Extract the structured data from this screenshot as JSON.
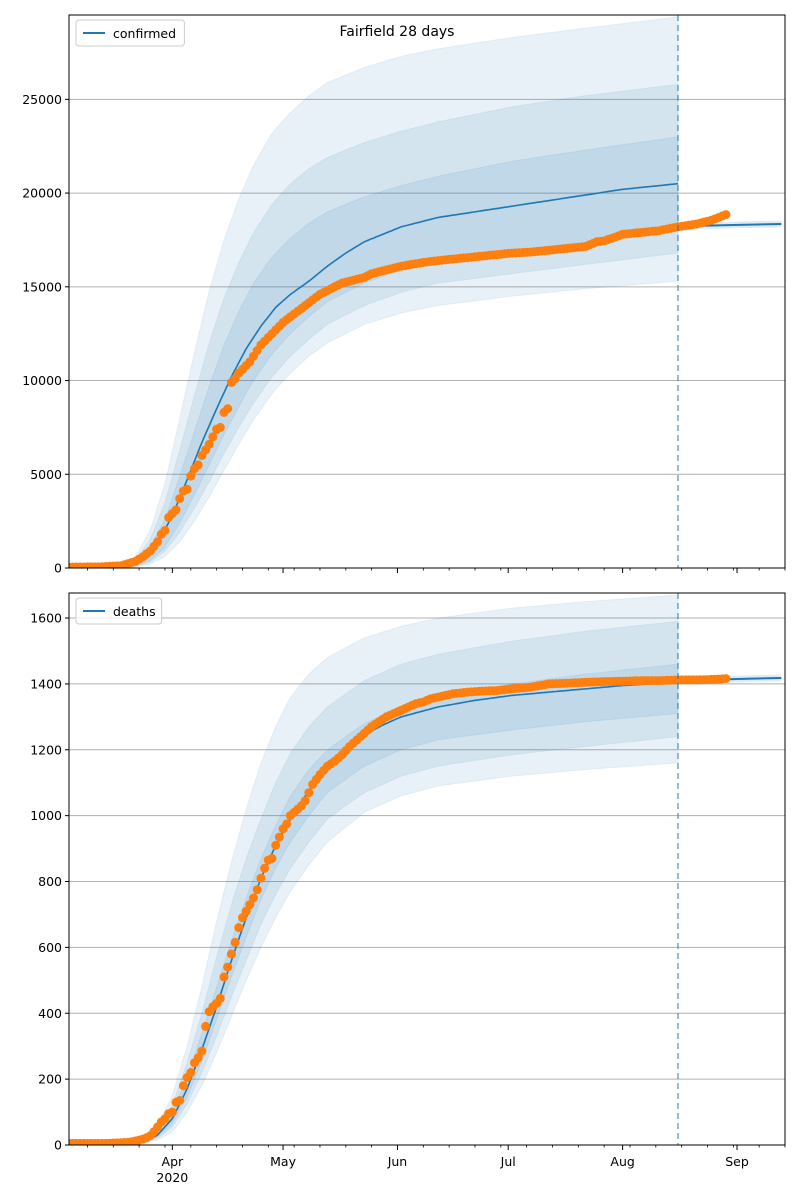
{
  "title": "Fairfield 28 days",
  "colors": {
    "model": "#1f77b4",
    "observed": "#ff7f0e",
    "band": "#1f77b4",
    "grid": "#b0b0b0",
    "axis": "#000000"
  },
  "chart_data": [
    {
      "type": "line",
      "title": "Fairfield 28 days",
      "legend": [
        "confirmed"
      ],
      "legend_position": "top-left",
      "grid": "y",
      "x_axis": {
        "type": "date",
        "start": "2020-03-04",
        "end": "2020-09-14",
        "tick_labels": [
          "Apr",
          "May",
          "Jun",
          "Jul",
          "Aug",
          "Sep"
        ],
        "tick_dates": [
          "2020-04-01",
          "2020-05-01",
          "2020-06-01",
          "2020-07-01",
          "2020-08-01",
          "2020-09-01"
        ],
        "year_label": "2020"
      },
      "ylim": [
        0,
        29500
      ],
      "yticks": [
        0,
        5000,
        10000,
        15000,
        20000,
        25000
      ],
      "forecast_start": "2020-08-16",
      "model_median": {
        "days": [
          0,
          10,
          16,
          20,
          24,
          28,
          32,
          36,
          40,
          44,
          48,
          52,
          56,
          60,
          65,
          70,
          75,
          80,
          85,
          90,
          100,
          110,
          120,
          130,
          140,
          150,
          160,
          165
        ],
        "values": [
          0,
          20,
          150,
          500,
          1300,
          2800,
          4700,
          6700,
          8500,
          10200,
          11700,
          12900,
          13900,
          14600,
          15300,
          16100,
          16800,
          17400,
          17800,
          18200,
          18700,
          19000,
          19300,
          19600,
          19900,
          20200,
          20400,
          20500
        ]
      },
      "bands": [
        {
          "name": "outer",
          "days": [
            0,
            12,
            18,
            22,
            26,
            30,
            34,
            38,
            42,
            46,
            50,
            55,
            60,
            65,
            70,
            80,
            90,
            100,
            120,
            140,
            165
          ],
          "lower": [
            0,
            0,
            50,
            200,
            600,
            1400,
            2500,
            3800,
            5200,
            6600,
            7900,
            9300,
            10400,
            11300,
            12000,
            13000,
            13600,
            14000,
            14500,
            14900,
            15300
          ],
          "upper": [
            0,
            50,
            600,
            2000,
            4500,
            8000,
            11500,
            14800,
            17500,
            19700,
            21500,
            23200,
            24300,
            25200,
            25900,
            26700,
            27300,
            27700,
            28300,
            28800,
            29400
          ]
        },
        {
          "name": "middle",
          "days": [
            0,
            12,
            18,
            22,
            26,
            30,
            34,
            38,
            42,
            46,
            50,
            55,
            60,
            65,
            70,
            80,
            90,
            100,
            120,
            140,
            165
          ],
          "lower": [
            0,
            0,
            80,
            300,
            900,
            1900,
            3200,
            4600,
            6100,
            7500,
            8800,
            10200,
            11300,
            12200,
            13000,
            14000,
            14700,
            15200,
            15700,
            16200,
            16800
          ],
          "upper": [
            0,
            40,
            450,
            1500,
            3500,
            6300,
            9200,
            12000,
            14400,
            16300,
            17900,
            19400,
            20500,
            21300,
            21900,
            22700,
            23300,
            23800,
            24600,
            25200,
            25800
          ]
        },
        {
          "name": "inner",
          "days": [
            0,
            12,
            18,
            22,
            26,
            30,
            34,
            38,
            42,
            46,
            50,
            55,
            60,
            65,
            70,
            80,
            90,
            100,
            120,
            140,
            165
          ],
          "lower": [
            0,
            0,
            100,
            400,
            1100,
            2400,
            3900,
            5500,
            7100,
            8600,
            10000,
            11400,
            12500,
            13400,
            14200,
            15200,
            15900,
            16400,
            16900,
            17400,
            18000
          ],
          "upper": [
            0,
            30,
            300,
            1100,
            2600,
            4900,
            7300,
            9700,
            11900,
            13700,
            15200,
            16600,
            17600,
            18400,
            19000,
            19800,
            20400,
            20900,
            21700,
            22300,
            23000
          ]
        }
      ],
      "forecast_tail": {
        "days": [
          165,
          170,
          180,
          193
        ],
        "values": [
          18200,
          18250,
          18300,
          18350
        ]
      },
      "observed": {
        "days": [
          0,
          8,
          14,
          18,
          20,
          22,
          24,
          25,
          26,
          27,
          28,
          29,
          30,
          31,
          32,
          33,
          34,
          35,
          36,
          37,
          38,
          39,
          40,
          41,
          42,
          43,
          44,
          45,
          46,
          47,
          48,
          49,
          50,
          52,
          54,
          56,
          58,
          60,
          62,
          64,
          66,
          68,
          70,
          72,
          74,
          76,
          78,
          80,
          82,
          84,
          86,
          88,
          90,
          93,
          96,
          100,
          105,
          110,
          115,
          120,
          125,
          130,
          135,
          140,
          143,
          145,
          148,
          150,
          155,
          160,
          165,
          170,
          174,
          178
        ],
        "values": [
          50,
          60,
          120,
          350,
          600,
          900,
          1400,
          1800,
          2000,
          2700,
          2900,
          3100,
          3700,
          4100,
          4200,
          4900,
          5300,
          5500,
          6000,
          6300,
          6600,
          7000,
          7400,
          7500,
          8300,
          8500,
          9900,
          10100,
          10400,
          10600,
          10800,
          11000,
          11300,
          11900,
          12300,
          12700,
          13100,
          13400,
          13700,
          14000,
          14300,
          14600,
          14800,
          15000,
          15200,
          15300,
          15400,
          15500,
          15700,
          15800,
          15900,
          16000,
          16100,
          16200,
          16300,
          16400,
          16500,
          16600,
          16700,
          16800,
          16850,
          16950,
          17050,
          17150,
          17400,
          17450,
          17650,
          17800,
          17900,
          18000,
          18200,
          18350,
          18550,
          18850
        ]
      }
    },
    {
      "type": "line",
      "legend": [
        "deaths"
      ],
      "legend_position": "top-left",
      "grid": "y",
      "x_axis": {
        "type": "date",
        "start": "2020-03-04",
        "end": "2020-09-14",
        "tick_labels": [
          "Apr",
          "May",
          "Jun",
          "Jul",
          "Aug",
          "Sep"
        ],
        "tick_dates": [
          "2020-04-01",
          "2020-05-01",
          "2020-06-01",
          "2020-07-01",
          "2020-08-01",
          "2020-09-01"
        ],
        "year_label": "2020"
      },
      "ylim": [
        0,
        1676
      ],
      "yticks": [
        0,
        200,
        400,
        600,
        800,
        1000,
        1200,
        1400,
        1600
      ],
      "forecast_start": "2020-08-16",
      "model_median": {
        "days": [
          0,
          16,
          20,
          24,
          28,
          32,
          36,
          40,
          44,
          48,
          52,
          56,
          60,
          64,
          68,
          72,
          76,
          80,
          85,
          90,
          100,
          110,
          120,
          130,
          140,
          150,
          165
        ],
        "values": [
          0,
          2,
          10,
          30,
          80,
          170,
          290,
          420,
          560,
          690,
          810,
          910,
          990,
          1060,
          1120,
          1170,
          1210,
          1245,
          1275,
          1300,
          1330,
          1350,
          1365,
          1375,
          1385,
          1395,
          1405
        ]
      },
      "bands": [
        {
          "name": "outer",
          "days": [
            0,
            16,
            20,
            24,
            28,
            32,
            36,
            40,
            44,
            48,
            52,
            56,
            60,
            65,
            70,
            80,
            90,
            100,
            120,
            140,
            165
          ],
          "lower": [
            0,
            0,
            5,
            15,
            40,
            100,
            180,
            280,
            390,
            500,
            600,
            690,
            770,
            850,
            920,
            1010,
            1060,
            1090,
            1120,
            1140,
            1160
          ],
          "upper": [
            0,
            5,
            20,
            60,
            150,
            300,
            480,
            680,
            860,
            1020,
            1160,
            1270,
            1360,
            1430,
            1480,
            1540,
            1575,
            1600,
            1630,
            1650,
            1670
          ]
        },
        {
          "name": "middle",
          "days": [
            0,
            16,
            20,
            24,
            28,
            32,
            36,
            40,
            44,
            48,
            52,
            56,
            60,
            65,
            70,
            80,
            90,
            100,
            120,
            140,
            165
          ],
          "lower": [
            0,
            0,
            7,
            20,
            55,
            125,
            220,
            330,
            450,
            560,
            670,
            760,
            840,
            920,
            990,
            1070,
            1120,
            1150,
            1185,
            1210,
            1240
          ],
          "upper": [
            0,
            4,
            16,
            48,
            120,
            250,
            400,
            570,
            730,
            870,
            990,
            1100,
            1190,
            1270,
            1330,
            1410,
            1460,
            1490,
            1530,
            1560,
            1590
          ]
        },
        {
          "name": "inner",
          "days": [
            0,
            16,
            20,
            24,
            28,
            32,
            36,
            40,
            44,
            48,
            52,
            56,
            60,
            65,
            70,
            80,
            90,
            100,
            120,
            140,
            165
          ],
          "lower": [
            0,
            1,
            8,
            24,
            65,
            145,
            255,
            380,
            510,
            630,
            745,
            840,
            920,
            1000,
            1070,
            1150,
            1200,
            1230,
            1260,
            1285,
            1310
          ],
          "upper": [
            0,
            3,
            13,
            38,
            100,
            205,
            340,
            480,
            620,
            750,
            870,
            970,
            1060,
            1140,
            1200,
            1280,
            1330,
            1360,
            1400,
            1430,
            1460
          ]
        }
      ],
      "forecast_tail": {
        "days": [
          165,
          175,
          185,
          193
        ],
        "values": [
          1410,
          1413,
          1416,
          1418
        ]
      },
      "observed": {
        "days": [
          0,
          10,
          16,
          18,
          19,
          20,
          21,
          22,
          23,
          24,
          25,
          26,
          27,
          28,
          29,
          30,
          31,
          32,
          33,
          34,
          35,
          36,
          37,
          38,
          39,
          40,
          41,
          42,
          43,
          44,
          45,
          46,
          47,
          48,
          49,
          50,
          51,
          52,
          53,
          54,
          55,
          56,
          57,
          58,
          59,
          60,
          61,
          62,
          63,
          64,
          65,
          66,
          67,
          68,
          70,
          72,
          74,
          76,
          78,
          80,
          82,
          84,
          86,
          88,
          90,
          92,
          94,
          96,
          98,
          100,
          104,
          108,
          112,
          116,
          120,
          125,
          130,
          135,
          140,
          145,
          150,
          155,
          160,
          165,
          170,
          175,
          178
        ],
        "values": [
          5,
          5,
          8,
          12,
          15,
          18,
          22,
          28,
          40,
          55,
          70,
          80,
          95,
          100,
          130,
          135,
          180,
          205,
          220,
          250,
          265,
          285,
          360,
          405,
          420,
          430,
          445,
          510,
          540,
          580,
          615,
          660,
          690,
          710,
          730,
          750,
          775,
          810,
          840,
          865,
          870,
          910,
          935,
          960,
          975,
          1000,
          1010,
          1020,
          1030,
          1045,
          1070,
          1095,
          1110,
          1125,
          1150,
          1165,
          1185,
          1210,
          1230,
          1250,
          1270,
          1285,
          1300,
          1310,
          1320,
          1330,
          1340,
          1345,
          1355,
          1360,
          1370,
          1375,
          1378,
          1380,
          1385,
          1390,
          1400,
          1402,
          1405,
          1407,
          1408,
          1410,
          1410,
          1412,
          1412,
          1414,
          1416
        ]
      }
    }
  ]
}
